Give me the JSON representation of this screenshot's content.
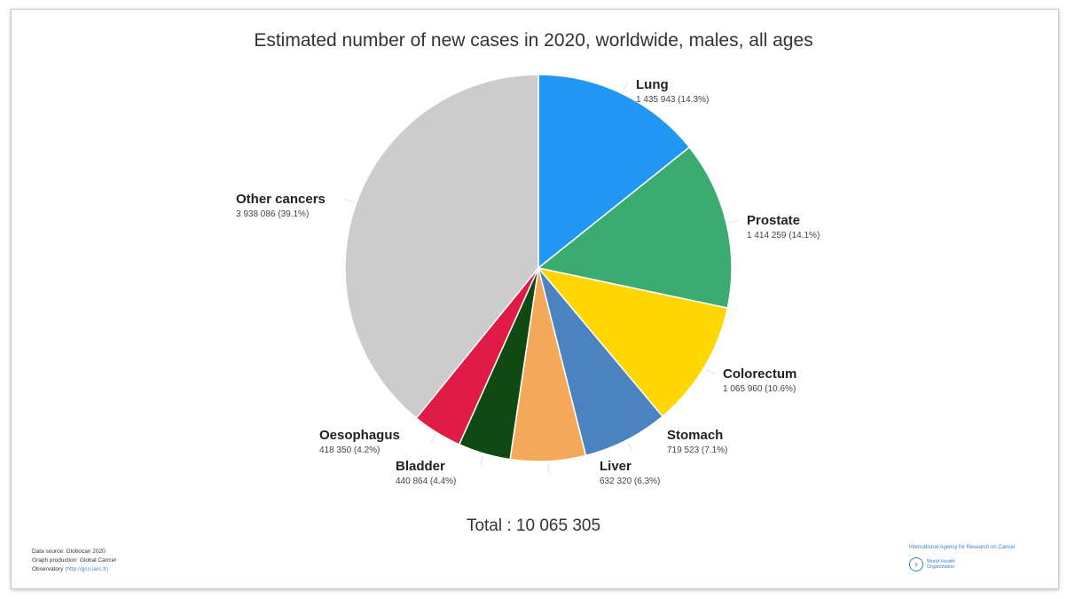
{
  "chart_data": {
    "type": "pie",
    "title": "Estimated number of new cases in 2020, worldwide, males, all ages",
    "slices": [
      {
        "name": "Lung",
        "value_label": "1 435 943 (14.3%)",
        "value": 1435943,
        "percent": 14.3,
        "color": "#2196F3"
      },
      {
        "name": "Prostate",
        "value_label": "1 414 259 (14.1%)",
        "value": 1414259,
        "percent": 14.1,
        "color": "#3CAB6F"
      },
      {
        "name": "Colorectum",
        "value_label": "1 065 960 (10.6%)",
        "value": 1065960,
        "percent": 10.6,
        "color": "#FFD600"
      },
      {
        "name": "Stomach",
        "value_label": "719 523 (7.1%)",
        "value": 719523,
        "percent": 7.1,
        "color": "#4A83BF"
      },
      {
        "name": "Liver",
        "value_label": "632 320 (6.3%)",
        "value": 632320,
        "percent": 6.3,
        "color": "#F4A95A"
      },
      {
        "name": "Bladder",
        "value_label": "440 864 (4.4%)",
        "value": 440864,
        "percent": 4.4,
        "color": "#0E4A12"
      },
      {
        "name": "Oesophagus",
        "value_label": "418 350 (4.2%)",
        "value": 418350,
        "percent": 4.2,
        "color": "#E01B45"
      },
      {
        "name": "Other cancers",
        "value_label": "3 938 086 (39.1%)",
        "value": 3938086,
        "percent": 39.1,
        "color": "#CCCCCC"
      }
    ],
    "total_label": "Total : 10 065 305"
  },
  "footer": {
    "source_lines": [
      "Data source: Globocan 2020",
      "Graph production: Global Cancer",
      "Observatory"
    ],
    "source_link": "(http://gco.iarc.fr)",
    "iarc_label": "International Agency for Research on Cancer",
    "who_label": "World Health Organization"
  }
}
